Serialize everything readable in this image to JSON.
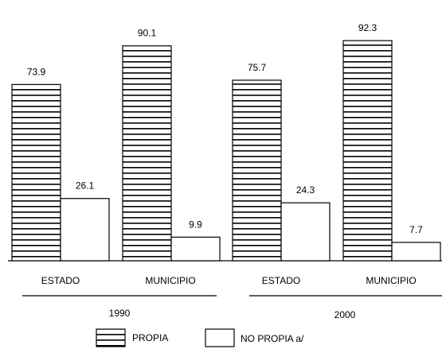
{
  "chart_data": {
    "type": "bar",
    "title": "",
    "xlabel": "",
    "ylabel": "",
    "ylim": [
      0,
      100
    ],
    "groups": [
      {
        "year": "1990",
        "categories": [
          {
            "label": "ESTADO",
            "propia": 73.9,
            "no_propia": 26.1
          },
          {
            "label": "MUNICIPIO",
            "propia": 90.1,
            "no_propia": 9.9
          }
        ]
      },
      {
        "year": "2000",
        "categories": [
          {
            "label": "ESTADO",
            "propia": 75.7,
            "no_propia": 24.3
          },
          {
            "label": "MUNICIPIO",
            "propia": 92.3,
            "no_propia": 7.7
          }
        ]
      }
    ],
    "series": [
      {
        "name": "PROPIA",
        "pattern": "horizontal-stripes"
      },
      {
        "name": "NO PROPIA a/",
        "pattern": "empty"
      }
    ],
    "value_labels": {
      "g0c0p": "73.9",
      "g0c0n": "26.1",
      "g0c1p": "90.1",
      "g0c1n": "9.9",
      "g1c0p": "75.7",
      "g1c0n": "24.3",
      "g1c1p": "92.3",
      "g1c1n": "7.7"
    },
    "legend": {
      "position": "bottom",
      "propia": "PROPIA",
      "no_propia": "NO PROPIA a/"
    },
    "grid": false
  }
}
